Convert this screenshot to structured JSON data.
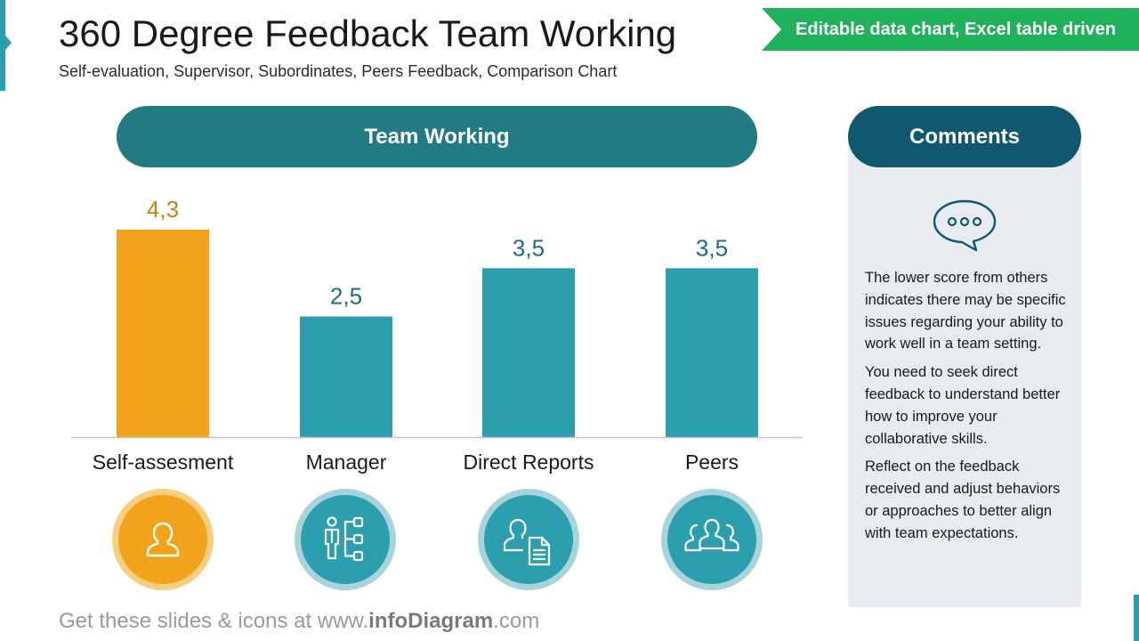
{
  "slide": {
    "title": "360 Degree Feedback Team Working",
    "subtitle": "Self-evaluation, Supervisor, Subordinates, Peers Feedback, Comparison Chart",
    "ribbon": "Editable data chart, Excel table driven",
    "footer_prefix": "Get these slides & icons at www.",
    "footer_brand": "infoDiagram",
    "footer_suffix": ".com"
  },
  "chart_header": "Team Working",
  "chart_data": {
    "type": "bar",
    "title": "Team Working",
    "categories": [
      "Self-assesment",
      "Manager",
      "Direct Reports",
      "Peers"
    ],
    "values": [
      4.3,
      2.5,
      3.5,
      3.5
    ],
    "value_labels": [
      "4,3",
      "2,5",
      "3,5",
      "3,5"
    ],
    "colors": [
      "#f0a31b",
      "#2c9fae",
      "#2c9fae",
      "#2c9fae"
    ],
    "label_colors": [
      "#c98410",
      "#1e6e7a",
      "#1e6e7a",
      "#1e6e7a"
    ],
    "ylim": [
      0,
      5
    ],
    "xlabel": "",
    "ylabel": "",
    "grid": false
  },
  "icons": [
    "person-icon",
    "org-chart-icon",
    "person-document-icon",
    "group-icon"
  ],
  "comments": {
    "header": "Comments",
    "icon": "speech-bubble-icon",
    "paragraphs": [
      "The lower score from others indicates there may be specific issues regarding your ability to work well in a team setting.",
      "You need to seek direct feedback to understand better how to improve your collaborative skills.",
      "Reflect on the feedback received and adjust behaviors or approaches to better align with team expectations."
    ]
  }
}
